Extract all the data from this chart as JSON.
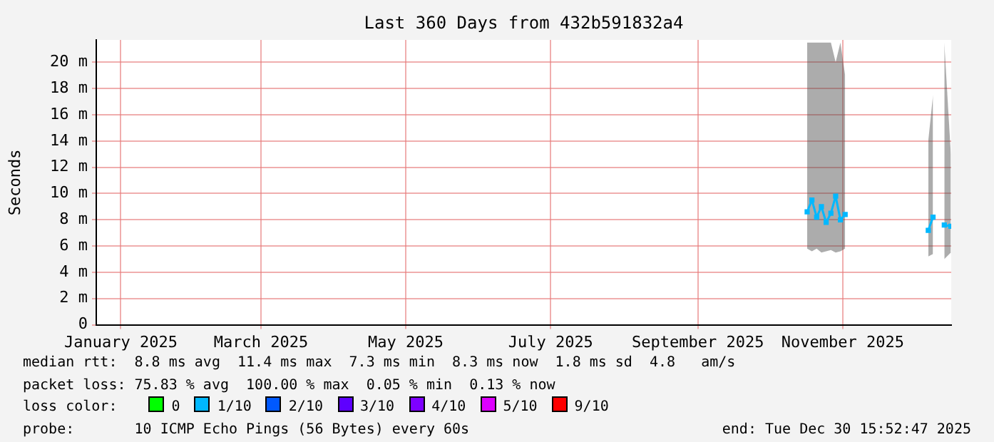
{
  "chart_data": {
    "type": "line",
    "title": "Last 360 Days from 432b591832a4",
    "ylabel": "Seconds",
    "x": [
      "2025-10-31",
      "2025-11-02",
      "2025-11-04",
      "2025-11-06",
      "2025-11-08",
      "2025-11-10",
      "2025-11-12",
      "2025-11-14",
      "2025-11-16",
      "2025-11-25",
      "2025-12-21",
      "2025-12-23",
      "2025-12-25",
      "2025-12-27T18:00",
      "2025-12-30T12:00"
    ],
    "series": [
      {
        "name": "0",
        "color": "#00ff00",
        "values": [
          null,
          null,
          null,
          null,
          null,
          null,
          null,
          null,
          null,
          null,
          null,
          null,
          null,
          null,
          null
        ]
      },
      {
        "name": "1/10",
        "color": "#00b8ff",
        "values": [
          8.6,
          9.5,
          8.2,
          9.0,
          7.8,
          8.5,
          9.8,
          8.0,
          8.4,
          null,
          7.2,
          8.2,
          null,
          7.6,
          7.5
        ],
        "lower": [
          5.8,
          5.6,
          5.8,
          5.5,
          5.6,
          5.7,
          5.5,
          5.6,
          5.8,
          null,
          5.2,
          5.4,
          null,
          5.0,
          5.5
        ],
        "upper": [
          21.5,
          21.5,
          21.5,
          21.5,
          21.5,
          21.5,
          20,
          21.5,
          19,
          null,
          14,
          17.5,
          null,
          21.5,
          13
        ]
      },
      {
        "name": "2/10",
        "color": "#0059ff",
        "values": [
          null,
          null,
          null,
          null,
          null,
          null,
          null,
          null,
          null,
          null,
          null,
          null,
          null,
          null,
          null
        ]
      },
      {
        "name": "3/10",
        "color": "#5e00ff",
        "values": [
          null,
          null,
          null,
          null,
          null,
          null,
          null,
          null,
          null,
          null,
          null,
          null,
          null,
          null,
          null
        ]
      },
      {
        "name": "4/10",
        "color": "#7e00ff",
        "values": [
          null,
          null,
          null,
          null,
          null,
          null,
          null,
          null,
          null,
          null,
          null,
          null,
          null,
          null,
          null
        ]
      },
      {
        "name": "5/10",
        "color": "#dd00ff",
        "values": [
          null,
          null,
          null,
          null,
          null,
          null,
          null,
          null,
          null,
          null,
          null,
          null,
          null,
          null,
          null
        ]
      },
      {
        "name": "9/10",
        "color": "#ff0000",
        "values": [
          null,
          null,
          null,
          null,
          null,
          null,
          null,
          null,
          null,
          null,
          null,
          null,
          null,
          null,
          null
        ]
      }
    ],
    "xlim": [
      "2025-01-04T15:52",
      "2025-12-30T15:52"
    ],
    "xticks": [
      {
        "value": "2025-01-15",
        "label": "January 2025"
      },
      {
        "value": "2025-03-15",
        "label": "March 2025"
      },
      {
        "value": "2025-05-15",
        "label": "May 2025"
      },
      {
        "value": "2025-07-15",
        "label": "July 2025"
      },
      {
        "value": "2025-09-15",
        "label": "September 2025"
      },
      {
        "value": "2025-11-15",
        "label": "November 2025"
      }
    ],
    "ylim": [
      0,
      21.7
    ],
    "yticks": [
      0,
      {
        "value": 2,
        "label": "2 m"
      },
      {
        "value": 4,
        "label": "4 m"
      },
      {
        "value": 6,
        "label": "6 m"
      },
      {
        "value": 8,
        "label": "8 m"
      },
      {
        "value": 10,
        "label": "10 m"
      },
      {
        "value": 12,
        "label": "12 m"
      },
      {
        "value": 14,
        "label": "14 m"
      },
      {
        "value": 16,
        "label": "16 m"
      },
      {
        "value": 18,
        "label": "18 m"
      },
      {
        "value": 20,
        "label": "20 m"
      }
    ],
    "grid": true,
    "marker": "square",
    "legend": "bottom",
    "legend_title": "loss color:",
    "annotations": [
      "median rtt:  8.8 ms avg  11.4 ms max  7.3 ms min  8.3 ms now  1.8 ms sd  4.8   am/s",
      "packet loss: 75.83 % avg  100.00 % max  0.05 % min  0.13 % now",
      "probe:       10 ICMP Echo Pings (56 Bytes) every 60s",
      "end: Tue Dec 30 15:52:47 2025"
    ]
  }
}
